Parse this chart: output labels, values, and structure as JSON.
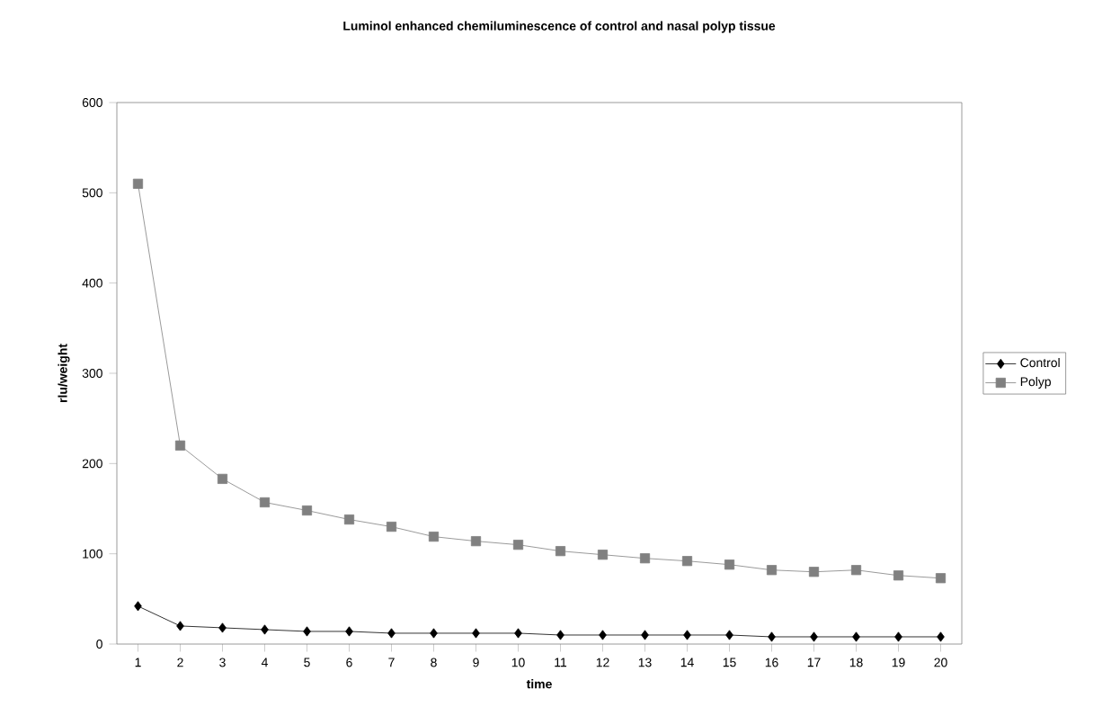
{
  "chart_data": {
    "type": "line",
    "title": "Luminol enhanced chemiluminescence of control and nasal polyp tissue",
    "xlabel": "time",
    "ylabel": "rlu/weight",
    "categories": [
      "1",
      "2",
      "3",
      "4",
      "5",
      "6",
      "7",
      "8",
      "9",
      "10",
      "11",
      "12",
      "13",
      "14",
      "15",
      "16",
      "17",
      "18",
      "19",
      "20"
    ],
    "series": [
      {
        "name": "Control",
        "color": "#000000",
        "marker": "diamond",
        "values": [
          42,
          20,
          18,
          16,
          14,
          14,
          12,
          12,
          12,
          12,
          10,
          10,
          10,
          10,
          10,
          8,
          8,
          8,
          8,
          8
        ]
      },
      {
        "name": "Polyp",
        "color": "#808080",
        "marker": "square",
        "values": [
          510,
          220,
          183,
          157,
          148,
          138,
          130,
          119,
          114,
          110,
          103,
          99,
          95,
          92,
          88,
          82,
          80,
          82,
          76,
          73
        ]
      }
    ],
    "ylim": [
      0,
      600
    ],
    "yticks": [
      0,
      100,
      200,
      300,
      400,
      500,
      600
    ],
    "legend": "right",
    "grid": false
  }
}
